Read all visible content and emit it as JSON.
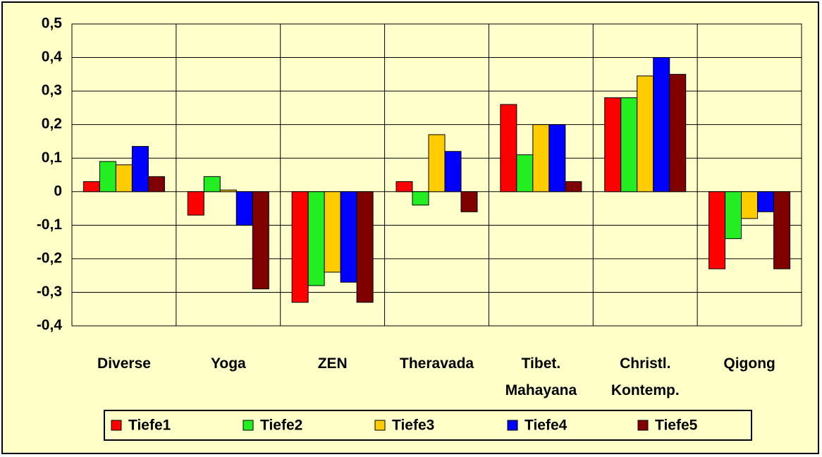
{
  "chart_data": {
    "type": "bar",
    "categories": [
      "Diverse",
      "Yoga",
      "ZEN",
      "Theravada",
      "Tibet.\nMahayana",
      "Christl.\nKontemp.",
      "Qigong"
    ],
    "series": [
      {
        "name": "Tiefe1",
        "color": "#ff0000",
        "values": [
          0.03,
          -0.07,
          -0.33,
          0.03,
          0.26,
          0.28,
          -0.23
        ]
      },
      {
        "name": "Tiefe2",
        "color": "#22ee22",
        "values": [
          0.09,
          0.045,
          -0.28,
          -0.04,
          0.11,
          0.28,
          -0.14
        ]
      },
      {
        "name": "Tiefe3",
        "color": "#ffcc00",
        "values": [
          0.08,
          0.005,
          -0.24,
          0.17,
          0.2,
          0.345,
          -0.08
        ]
      },
      {
        "name": "Tiefe4",
        "color": "#0000ff",
        "values": [
          0.135,
          -0.1,
          -0.27,
          0.12,
          0.2,
          0.4,
          -0.06
        ]
      },
      {
        "name": "Tiefe5",
        "color": "#800000",
        "values": [
          0.045,
          -0.29,
          -0.33,
          -0.06,
          0.03,
          0.35,
          -0.23
        ]
      }
    ],
    "ylim": [
      -0.4,
      0.5
    ],
    "yticks": [
      {
        "value": -0.4,
        "label": "-0,4"
      },
      {
        "value": -0.3,
        "label": "-0,3"
      },
      {
        "value": -0.2,
        "label": "-0,2"
      },
      {
        "value": -0.1,
        "label": "-0,1"
      },
      0,
      {
        "value": 0.1,
        "label": "0,1"
      },
      {
        "value": 0.2,
        "label": "0,2"
      },
      {
        "value": 0.3,
        "label": "0,3"
      },
      {
        "value": 0.4,
        "label": "0,4"
      },
      {
        "value": 0.5,
        "label": "0,5"
      }
    ],
    "grid": true
  }
}
